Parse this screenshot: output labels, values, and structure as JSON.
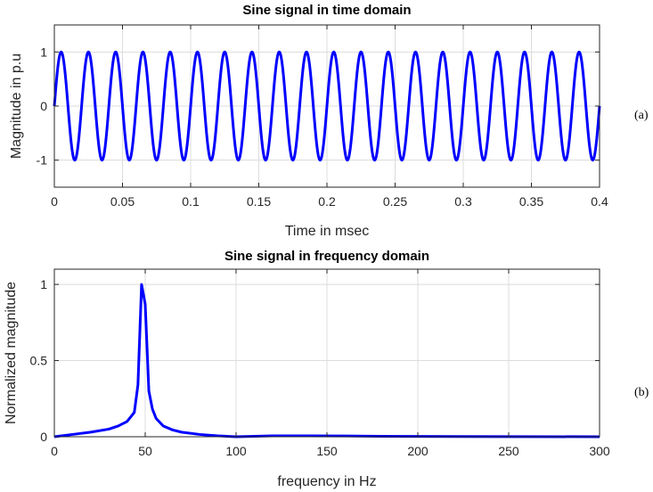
{
  "colors": {
    "line": "#0000ff",
    "grid": "#dcdcdc",
    "axis": "#262626"
  },
  "chart_data": [
    {
      "type": "line",
      "panel_label": "(a)",
      "title": "Sine signal in time domain",
      "xlabel": "Time in msec",
      "ylabel": "Magnitude in p.u",
      "xlim": [
        0,
        0.4
      ],
      "ylim": [
        -1.5,
        1.5
      ],
      "xticks": [
        0,
        0.05,
        0.1,
        0.15,
        0.2,
        0.25,
        0.3,
        0.35,
        0.4
      ],
      "xtick_labels": [
        "0",
        "0.05",
        "0.1",
        "0.15",
        "0.2",
        "0.25",
        "0.3",
        "0.35",
        "0.4"
      ],
      "yticks": [
        -1,
        0,
        1
      ],
      "ytick_labels": [
        "-1",
        "0",
        "1"
      ],
      "grid": true,
      "series": [
        {
          "function": "sine",
          "amplitude": 1,
          "period": 0.02,
          "x_start": 0,
          "x_end": 0.4
        }
      ]
    },
    {
      "type": "line",
      "panel_label": "(b)",
      "title": "Sine signal in frequency domain",
      "xlabel": "frequency in Hz",
      "ylabel": "Normalized magnitude",
      "xlim": [
        0,
        300
      ],
      "ylim": [
        0,
        1.1
      ],
      "xticks": [
        0,
        50,
        100,
        150,
        200,
        250,
        300
      ],
      "xtick_labels": [
        "0",
        "50",
        "100",
        "150",
        "200",
        "250",
        "300"
      ],
      "yticks": [
        0,
        0.5,
        1
      ],
      "ytick_labels": [
        "0",
        "0.5",
        "1"
      ],
      "grid": true,
      "series": [
        {
          "x": [
            0,
            10,
            20,
            30,
            35,
            40,
            44,
            46,
            48,
            50,
            52,
            54,
            56,
            60,
            65,
            70,
            80,
            90,
            100,
            110,
            120,
            140,
            160,
            180,
            200,
            250,
            300
          ],
          "y": [
            0.0,
            0.015,
            0.03,
            0.05,
            0.07,
            0.1,
            0.16,
            0.34,
            1.0,
            0.87,
            0.3,
            0.18,
            0.12,
            0.07,
            0.045,
            0.03,
            0.015,
            0.006,
            0.0,
            0.003,
            0.006,
            0.006,
            0.005,
            0.003,
            0.002,
            0.001,
            0.0
          ]
        }
      ]
    }
  ]
}
